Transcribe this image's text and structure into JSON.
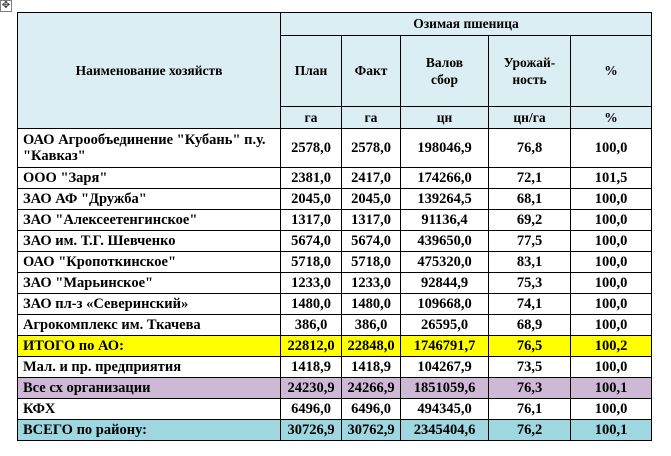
{
  "handle_icon": "move-handle-icon",
  "table": {
    "header": {
      "name_col": "Наименование хозяйств",
      "group": "Озимая пшеница",
      "cols": [
        "План",
        "Факт",
        "Валов сбор",
        "Урожай-ность",
        "%"
      ],
      "units": [
        "га",
        "га",
        "цн",
        "цн/га",
        "%"
      ]
    },
    "rows": [
      {
        "name": "ОАО Агрообъединение \"Кубань\" п.у. \"Кавказ\"",
        "v": [
          "2578,0",
          "2578,0",
          "198046,9",
          "76,8",
          "100,0"
        ]
      },
      {
        "name": "ООО \"Заря\"",
        "v": [
          "2381,0",
          "2417,0",
          "174266,0",
          "72,1",
          "101,5"
        ]
      },
      {
        "name": "ЗАО АФ \"Дружба\"",
        "v": [
          "2045,0",
          "2045,0",
          "139264,5",
          "68,1",
          "100,0"
        ]
      },
      {
        "name": "ЗАО \"Алексеетенгинское\"",
        "v": [
          "1317,0",
          "1317,0",
          "91136,4",
          "69,2",
          "100,0"
        ]
      },
      {
        "name": "ЗАО им. Т.Г. Шевченко",
        "v": [
          "5674,0",
          "5674,0",
          "439650,0",
          "77,5",
          "100,0"
        ]
      },
      {
        "name": "ОАО \"Кропоткинское\"",
        "v": [
          "5718,0",
          "5718,0",
          "475320,0",
          "83,1",
          "100,0"
        ]
      },
      {
        "name": "ЗАО \"Марьинское\"",
        "v": [
          "1233,0",
          "1233,0",
          "92844,9",
          "75,3",
          "100,0"
        ]
      },
      {
        "name": "ЗАО пл-з «Северинский»",
        "v": [
          "1480,0",
          "1480,0",
          "109668,0",
          "74,1",
          "100,0"
        ]
      },
      {
        "name": "Агрокомплекс им. Ткачева",
        "v": [
          "386,0",
          "386,0",
          "26595,0",
          "68,9",
          "100,0"
        ]
      },
      {
        "name": "ИТОГО по АО:",
        "v": [
          "22812,0",
          "22848,0",
          "1746791,7",
          "76,5",
          "100,2"
        ]
      },
      {
        "name": "Мал. и пр. предприятия",
        "v": [
          "1418,9",
          "1418,9",
          "104267,9",
          "73,5",
          "100,0"
        ]
      },
      {
        "name": "Все сх организации",
        "v": [
          "24230,9",
          "24266,9",
          "1851059,6",
          "76,3",
          "100,1"
        ]
      },
      {
        "name": "КФХ",
        "v": [
          "6496,0",
          "6496,0",
          "494345,0",
          "76,1",
          "100,0"
        ]
      },
      {
        "name": "ВСЕГО по району:",
        "v": [
          "30726,9",
          "30762,9",
          "2345404,6",
          "76,2",
          "100,1"
        ]
      }
    ]
  },
  "colors": {
    "header_bg": "#dbeef3",
    "itogo_bg": "#ffff00",
    "vse_bg": "#cdb8d6",
    "vsego_bg": "#9fd7e1"
  }
}
